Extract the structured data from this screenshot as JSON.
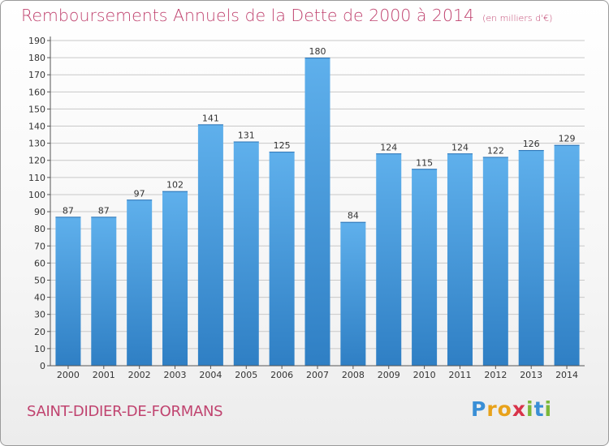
{
  "header": {
    "title": "Remboursements Annuels de la Dette de 2000 à 2014",
    "unit": "(en milliers d'€)"
  },
  "footer": {
    "commune": "SAINT-DIDIER-DE-FORMANS",
    "logo_letters": [
      "P",
      "r",
      "o",
      "x",
      "i",
      "t",
      "i"
    ],
    "logo_colors": [
      "#3a8fd6",
      "#e8a21b",
      "#e8a21b",
      "#d8344a",
      "#7bb83a",
      "#3a8fd6",
      "#7bb83a"
    ]
  },
  "chart_data": {
    "type": "bar",
    "categories": [
      "2000",
      "2001",
      "2002",
      "2003",
      "2004",
      "2005",
      "2006",
      "2007",
      "2008",
      "2009",
      "2010",
      "2011",
      "2012",
      "2013",
      "2014"
    ],
    "values": [
      87,
      87,
      97,
      102,
      141,
      131,
      125,
      180,
      84,
      124,
      115,
      124,
      122,
      126,
      129
    ],
    "ylim": [
      0,
      190
    ],
    "yticks": [
      0,
      10,
      20,
      30,
      40,
      50,
      60,
      70,
      80,
      90,
      100,
      110,
      120,
      130,
      140,
      150,
      160,
      170,
      180,
      190
    ],
    "grid": true,
    "bar_color": "#4a9ee0",
    "grid_color": "#c8c8c8"
  }
}
